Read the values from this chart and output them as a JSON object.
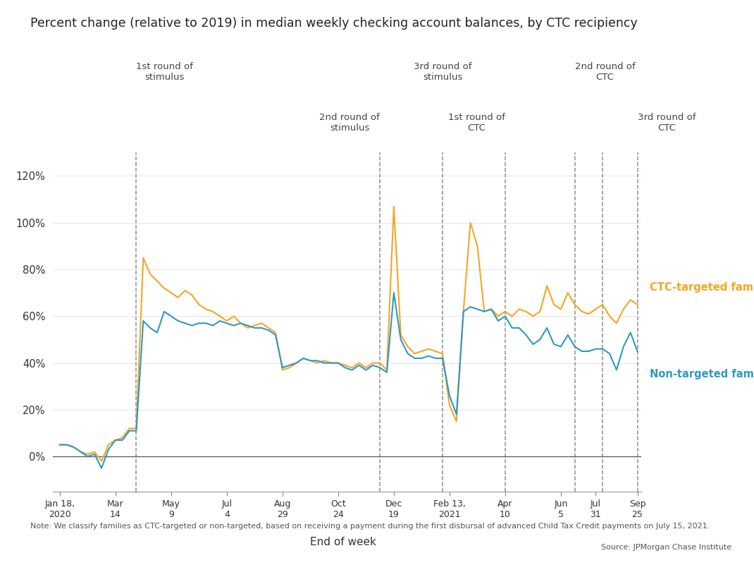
{
  "title": "Percent change (relative to 2019) in median weekly checking account balances, by CTC recipiency",
  "xlabel": "End of week",
  "note": "Note: We classify families as CTC-targeted or non-targeted, based on receiving a payment during the first disbursal of advanced Child Tax Credit payments on July 15, 2021.",
  "source": "Source: JPMorgan Chase Institute",
  "ctc_color": "#F5A623",
  "non_ctc_color": "#2E9AC4",
  "background_color": "#FFFFFF",
  "vline_color": "#909090",
  "zero_line_color": "#555555",
  "annotations_row1": [
    {
      "idx": 11,
      "label": "1st round of\nstimulus",
      "ha": "left"
    },
    {
      "idx": 55,
      "label": "3rd round of\nstimulus",
      "ha": "center"
    },
    {
      "idx": 74,
      "label": "2nd round of\nCTC",
      "ha": "left"
    }
  ],
  "annotations_row2": [
    {
      "idx": 46,
      "label": "2nd round of\nstimulus",
      "ha": "right"
    },
    {
      "idx": 64,
      "label": "1st round of\nCTC",
      "ha": "right"
    },
    {
      "idx": 83,
      "label": "3rd round of\nCTC",
      "ha": "left"
    }
  ],
  "vlines": [
    11,
    46,
    55,
    64,
    74,
    78,
    83
  ],
  "tick_positions": [
    0,
    8,
    16,
    24,
    32,
    40,
    48,
    56,
    64,
    72,
    77,
    83
  ],
  "tick_labels": [
    "Jan 18,\n2020",
    "Mar\n14",
    "May\n9",
    "Jul\n4",
    "Aug\n29",
    "Oct\n24",
    "Dec\n19",
    "Feb 13,\n2021",
    "Apr\n10",
    "Jun\n5",
    "Jul\n31",
    "Sep\n25"
  ],
  "ylim": [
    -15,
    130
  ],
  "yticks": [
    0,
    20,
    40,
    60,
    80,
    100,
    120
  ],
  "n_points": 84,
  "ctc_values": [
    5,
    5,
    4,
    2,
    1,
    2,
    -2,
    5,
    7,
    8,
    12,
    12,
    85,
    78,
    75,
    72,
    70,
    68,
    71,
    69,
    65,
    63,
    62,
    60,
    58,
    60,
    57,
    55,
    56,
    57,
    55,
    53,
    37,
    38,
    40,
    42,
    41,
    40,
    41,
    40,
    40,
    39,
    38,
    40,
    38,
    40,
    40,
    37,
    107,
    52,
    47,
    44,
    45,
    46,
    45,
    44,
    22,
    15,
    62,
    100,
    90,
    62,
    63,
    60,
    62,
    60,
    63,
    62,
    60,
    62,
    73,
    65,
    63,
    70,
    65,
    62,
    61,
    63,
    65,
    60,
    57,
    63,
    67,
    65
  ],
  "non_ctc_values": [
    5,
    5,
    4,
    2,
    0,
    1,
    -5,
    3,
    7,
    7,
    11,
    11,
    58,
    55,
    53,
    62,
    60,
    58,
    57,
    56,
    57,
    57,
    56,
    58,
    57,
    56,
    57,
    56,
    55,
    55,
    54,
    52,
    38,
    39,
    40,
    42,
    41,
    41,
    40,
    40,
    40,
    38,
    37,
    39,
    37,
    39,
    38,
    36,
    70,
    50,
    44,
    42,
    42,
    43,
    42,
    42,
    26,
    18,
    62,
    64,
    63,
    62,
    63,
    58,
    60,
    55,
    55,
    52,
    48,
    50,
    55,
    48,
    47,
    52,
    47,
    45,
    45,
    46,
    46,
    44,
    37,
    47,
    53,
    45
  ],
  "ctc_label": "CTC-targeted families",
  "non_ctc_label": "Non-targeted families"
}
